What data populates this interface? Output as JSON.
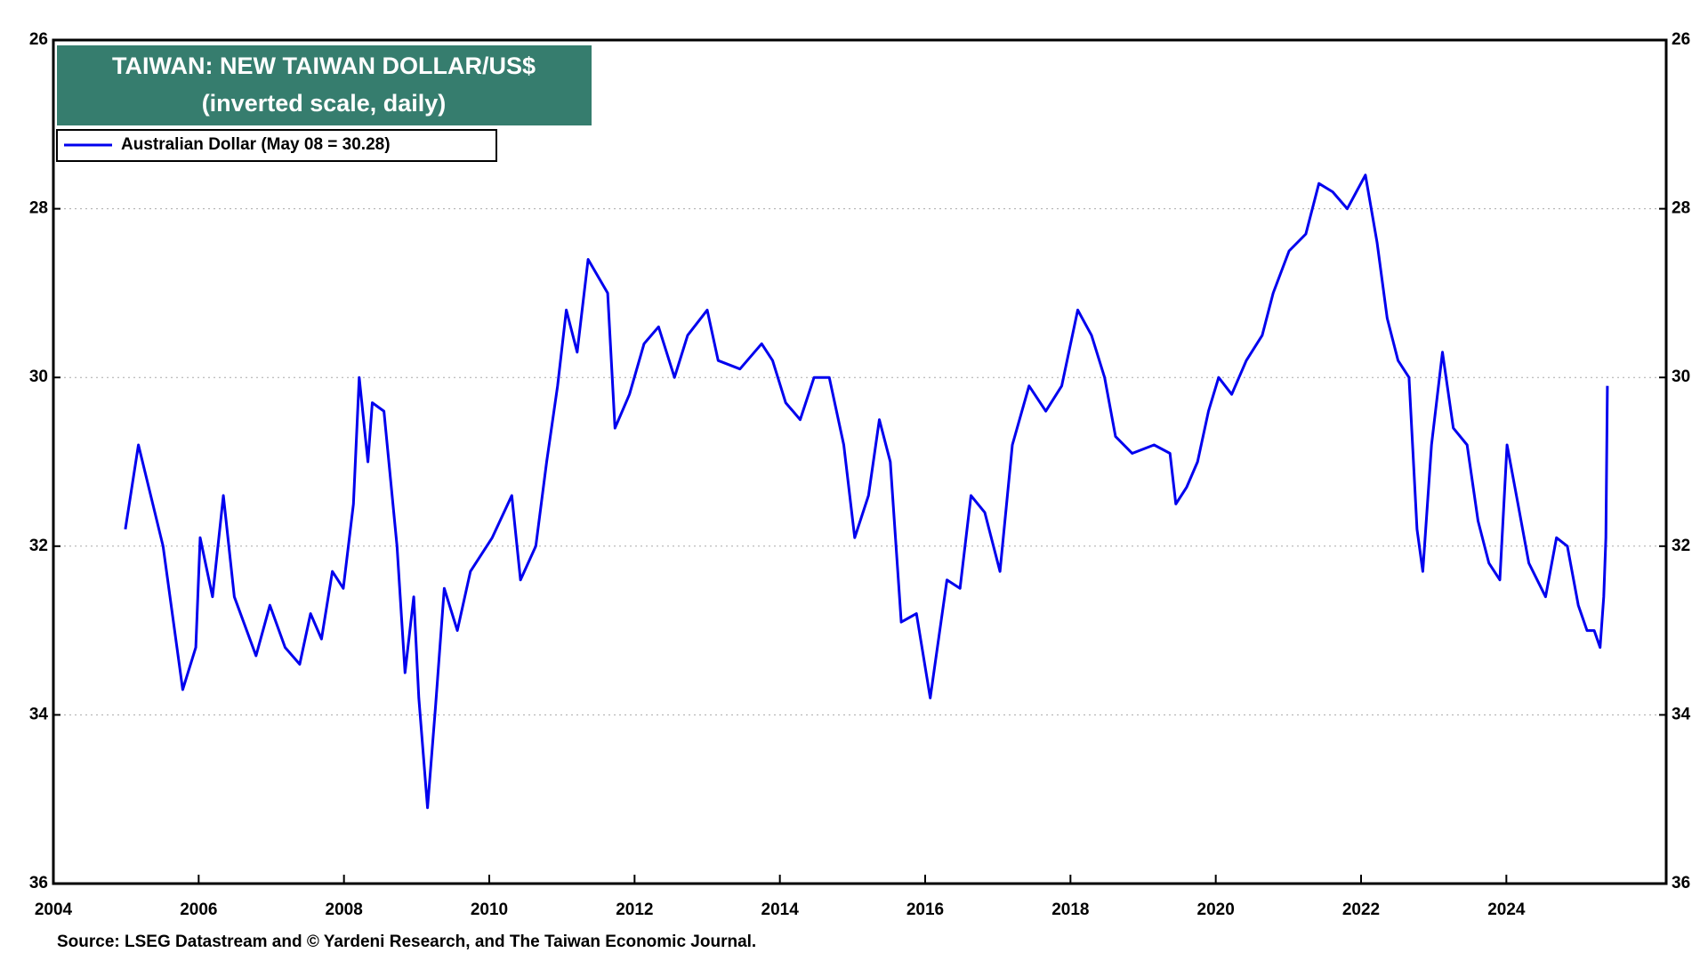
{
  "chart_data": {
    "type": "line",
    "title": "TAIWAN: NEW TAIWAN DOLLAR/US$",
    "subtitle": "(inverted scale, daily)",
    "source": "Source: LSEG Datastream and © Yardeni Research, and The Taiwan Economic Journal.",
    "x": [
      2004.99,
      2005.17,
      2005.51,
      2005.78,
      2005.96,
      2006.02,
      2006.19,
      2006.34,
      2006.49,
      2006.79,
      2006.98,
      2007.19,
      2007.39,
      2007.54,
      2007.69,
      2007.84,
      2007.99,
      2008.13,
      2008.21,
      2008.33,
      2008.39,
      2008.55,
      2008.73,
      2008.84,
      2008.96,
      2009.03,
      2009.15,
      2009.26,
      2009.38,
      2009.56,
      2009.74,
      2010.04,
      2010.31,
      2010.43,
      2010.64,
      2010.79,
      2010.94,
      2011.06,
      2011.21,
      2011.36,
      2011.63,
      2011.73,
      2011.93,
      2012.13,
      2012.33,
      2012.55,
      2012.73,
      2013.0,
      2013.15,
      2013.45,
      2013.75,
      2013.9,
      2014.08,
      2014.28,
      2014.47,
      2014.68,
      2014.88,
      2015.03,
      2015.22,
      2015.37,
      2015.52,
      2015.67,
      2015.88,
      2016.07,
      2016.3,
      2016.48,
      2016.63,
      2016.82,
      2017.03,
      2017.2,
      2017.43,
      2017.66,
      2017.88,
      2018.1,
      2018.29,
      2018.47,
      2018.62,
      2018.85,
      2019.15,
      2019.37,
      2019.45,
      2019.6,
      2019.75,
      2019.9,
      2020.04,
      2020.22,
      2020.42,
      2020.64,
      2020.79,
      2021.01,
      2021.24,
      2021.42,
      2021.61,
      2021.81,
      2022.06,
      2022.22,
      2022.36,
      2022.51,
      2022.66,
      2022.77,
      2022.85,
      2022.97,
      2023.12,
      2023.27,
      2023.46,
      2023.61,
      2023.76,
      2023.91,
      2024.01,
      2024.16,
      2024.31,
      2024.54,
      2024.69,
      2024.84,
      2024.99,
      2025.11,
      2025.21,
      2025.29,
      2025.34,
      2025.37,
      2025.39
    ],
    "series": [
      {
        "name": "Australian Dollar (May 08 = 30.28)",
        "color": "#0000ee",
        "values": [
          31.8,
          30.8,
          32.0,
          33.7,
          33.2,
          31.9,
          32.6,
          31.4,
          32.6,
          33.3,
          32.7,
          33.2,
          33.4,
          32.8,
          33.1,
          32.3,
          32.5,
          31.5,
          30.0,
          31.0,
          30.3,
          30.4,
          32.0,
          33.5,
          32.6,
          33.8,
          35.1,
          33.9,
          32.5,
          33.0,
          32.3,
          31.9,
          31.4,
          32.4,
          32.0,
          31.0,
          30.1,
          29.2,
          29.7,
          28.6,
          29.0,
          30.6,
          30.2,
          29.6,
          29.4,
          30.0,
          29.5,
          29.2,
          29.8,
          29.9,
          29.6,
          29.8,
          30.3,
          30.5,
          30.0,
          30.0,
          30.8,
          31.9,
          31.4,
          30.5,
          31.0,
          32.9,
          32.8,
          33.8,
          32.4,
          32.5,
          31.4,
          31.6,
          32.3,
          30.8,
          30.1,
          30.4,
          30.1,
          29.2,
          29.5,
          30.0,
          30.7,
          30.9,
          30.8,
          30.9,
          31.5,
          31.3,
          31.0,
          30.4,
          30.0,
          30.2,
          29.8,
          29.5,
          29.0,
          28.5,
          28.3,
          27.7,
          27.8,
          28.0,
          27.6,
          28.4,
          29.3,
          29.8,
          30.0,
          31.8,
          32.3,
          30.8,
          29.7,
          30.6,
          30.8,
          31.7,
          32.2,
          32.4,
          30.8,
          31.5,
          32.2,
          32.6,
          31.9,
          32.0,
          32.7,
          33.0,
          33.0,
          33.2,
          32.6,
          31.9,
          30.1
        ]
      }
    ],
    "xlim": [
      2004,
      2026.2
    ],
    "xticks": [
      2004,
      2006,
      2008,
      2010,
      2012,
      2014,
      2016,
      2018,
      2020,
      2022,
      2024
    ],
    "ylim": [
      26,
      36
    ],
    "yticks": [
      26,
      28,
      30,
      32,
      34,
      36
    ],
    "y_inverted": true,
    "grid": true,
    "legend": "upper left",
    "title_color": "#367d6e"
  }
}
